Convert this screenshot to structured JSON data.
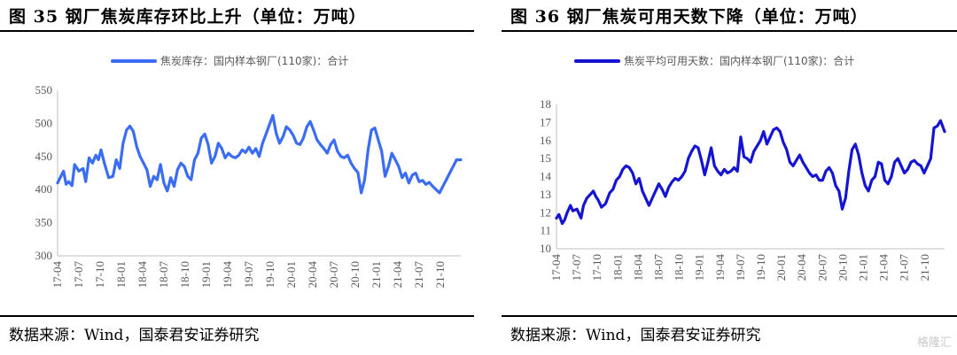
{
  "source_text": "数据来源：Wind，国泰君安证券研究",
  "watermark": "格隆汇",
  "chart_data": [
    {
      "type": "line",
      "title": "图 35  钢厂焦炭库存环比上升（单位：万吨）",
      "legend": "焦炭库存：国内样本钢厂(110家)：合计",
      "color": "#3A6CF4",
      "ylim": [
        300,
        550
      ],
      "yticks": [
        300,
        350,
        400,
        450,
        500,
        550
      ],
      "xticks": [
        "17-04",
        "17-07",
        "17-10",
        "18-01",
        "18-04",
        "18-07",
        "18-10",
        "19-01",
        "19-04",
        "19-07",
        "19-10",
        "20-01",
        "20-04",
        "20-07",
        "20-10",
        "21-01",
        "21-04",
        "21-07",
        "21-10"
      ],
      "x_start": 2017.25,
      "x_end": 2021.99,
      "series": [
        {
          "x": [
            2017.25,
            2017.28,
            2017.32,
            2017.35,
            2017.38,
            2017.42,
            2017.45,
            2017.5,
            2017.55,
            2017.58,
            2017.62,
            2017.66,
            2017.7,
            2017.73,
            2017.76,
            2017.8,
            2017.85,
            2017.9,
            2017.94,
            2017.98,
            2018.02,
            2018.06,
            2018.1,
            2018.14,
            2018.18,
            2018.22,
            2018.26,
            2018.3,
            2018.34,
            2018.38,
            2018.42,
            2018.46,
            2018.5,
            2018.54,
            2018.58,
            2018.62,
            2018.66,
            2018.7,
            2018.74,
            2018.78,
            2018.82,
            2018.86,
            2018.9,
            2018.94,
            2018.98,
            2019.02,
            2019.06,
            2019.1,
            2019.14,
            2019.18,
            2019.22,
            2019.26,
            2019.3,
            2019.34,
            2019.38,
            2019.42,
            2019.46,
            2019.5,
            2019.54,
            2019.58,
            2019.62,
            2019.66,
            2019.7,
            2019.74,
            2019.78,
            2019.82,
            2019.86,
            2019.9,
            2019.94,
            2019.98,
            2020.02,
            2020.06,
            2020.1,
            2020.14,
            2020.18,
            2020.22,
            2020.26,
            2020.3,
            2020.34,
            2020.38,
            2020.42,
            2020.46,
            2020.5,
            2020.54,
            2020.58,
            2020.62,
            2020.66,
            2020.7,
            2020.74,
            2020.78,
            2020.82,
            2020.86,
            2020.9,
            2020.94,
            2020.98,
            2021.02,
            2021.06,
            2021.1,
            2021.14,
            2021.18,
            2021.22,
            2021.26,
            2021.3,
            2021.34,
            2021.38,
            2021.42,
            2021.46,
            2021.5,
            2021.54,
            2021.58,
            2021.62,
            2021.66,
            2021.7,
            2021.74,
            2021.78,
            2021.82,
            2021.86,
            2021.9,
            2021.94,
            2021.99
          ],
          "y": [
            410,
            418,
            428,
            408,
            412,
            406,
            438,
            428,
            432,
            412,
            448,
            440,
            452,
            445,
            460,
            440,
            418,
            420,
            445,
            432,
            470,
            490,
            496,
            488,
            465,
            450,
            440,
            430,
            405,
            420,
            415,
            438,
            410,
            398,
            418,
            405,
            430,
            440,
            435,
            420,
            415,
            445,
            455,
            478,
            484,
            468,
            440,
            450,
            470,
            462,
            448,
            455,
            450,
            448,
            452,
            460,
            456,
            464,
            455,
            462,
            450,
            470,
            484,
            498,
            512,
            485,
            470,
            480,
            495,
            490,
            482,
            470,
            468,
            478,
            495,
            503,
            490,
            475,
            468,
            462,
            455,
            468,
            475,
            458,
            450,
            448,
            452,
            440,
            432,
            426,
            395,
            415,
            460,
            490,
            493,
            475,
            458,
            420,
            435,
            455,
            445,
            435,
            418,
            425,
            410,
            422,
            425,
            412,
            414,
            408,
            411,
            405,
            400,
            395,
            405,
            415,
            425,
            435,
            445,
            445
          ]
        }
      ]
    },
    {
      "type": "line",
      "title": "图 36  钢厂焦炭可用天数下降（单位：万吨）",
      "legend": "焦炭平均可用天数：国内样本钢厂(110家)：合计",
      "color": "#1414D2",
      "ylim": [
        10,
        18
      ],
      "yticks": [
        10,
        11,
        12,
        13,
        14,
        15,
        16,
        17,
        18
      ],
      "xticks": [
        "17-04",
        "17-07",
        "17-10",
        "18-01",
        "18-04",
        "18-07",
        "18-10",
        "19-01",
        "19-04",
        "19-07",
        "19-10",
        "20-01",
        "20-04",
        "20-07",
        "20-10",
        "21-01",
        "21-04",
        "21-07",
        "21-10"
      ],
      "x_start": 2017.25,
      "x_end": 2021.99,
      "series": [
        {
          "x": [
            2017.25,
            2017.28,
            2017.32,
            2017.35,
            2017.38,
            2017.42,
            2017.45,
            2017.5,
            2017.55,
            2017.58,
            2017.62,
            2017.66,
            2017.7,
            2017.73,
            2017.76,
            2017.8,
            2017.85,
            2017.9,
            2017.94,
            2017.98,
            2018.02,
            2018.06,
            2018.1,
            2018.14,
            2018.18,
            2018.22,
            2018.26,
            2018.3,
            2018.34,
            2018.38,
            2018.42,
            2018.46,
            2018.5,
            2018.54,
            2018.58,
            2018.62,
            2018.66,
            2018.7,
            2018.74,
            2018.78,
            2018.82,
            2018.86,
            2018.9,
            2018.94,
            2018.98,
            2019.02,
            2019.06,
            2019.1,
            2019.14,
            2019.18,
            2019.22,
            2019.26,
            2019.3,
            2019.34,
            2019.38,
            2019.42,
            2019.46,
            2019.5,
            2019.54,
            2019.58,
            2019.62,
            2019.66,
            2019.7,
            2019.74,
            2019.78,
            2019.82,
            2019.86,
            2019.9,
            2019.94,
            2019.98,
            2020.02,
            2020.06,
            2020.1,
            2020.14,
            2020.18,
            2020.22,
            2020.26,
            2020.3,
            2020.34,
            2020.38,
            2020.42,
            2020.46,
            2020.5,
            2020.54,
            2020.58,
            2020.62,
            2020.66,
            2020.7,
            2020.74,
            2020.78,
            2020.82,
            2020.86,
            2020.9,
            2020.94,
            2020.98,
            2021.02,
            2021.06,
            2021.1,
            2021.14,
            2021.18,
            2021.22,
            2021.26,
            2021.3,
            2021.34,
            2021.38,
            2021.42,
            2021.46,
            2021.5,
            2021.54,
            2021.58,
            2021.62,
            2021.66,
            2021.7,
            2021.74,
            2021.78,
            2021.82,
            2021.86,
            2021.9,
            2021.94,
            2021.99
          ],
          "y": [
            11.7,
            11.9,
            11.4,
            11.6,
            12.0,
            12.4,
            12.1,
            12.2,
            11.7,
            12.4,
            12.8,
            13.0,
            13.2,
            12.9,
            12.7,
            12.3,
            12.5,
            13.1,
            13.3,
            13.8,
            14.0,
            14.4,
            14.6,
            14.5,
            14.2,
            13.6,
            13.9,
            13.2,
            12.8,
            12.4,
            12.8,
            13.2,
            13.6,
            13.3,
            12.9,
            13.4,
            13.7,
            13.9,
            13.8,
            14.0,
            14.3,
            15.0,
            15.4,
            15.7,
            15.6,
            14.9,
            14.1,
            14.8,
            15.6,
            14.6,
            14.3,
            14.1,
            14.4,
            14.2,
            14.3,
            14.5,
            14.3,
            16.2,
            15.1,
            15.0,
            14.8,
            15.4,
            15.7,
            16.0,
            16.5,
            15.8,
            16.2,
            16.6,
            16.7,
            16.5,
            15.9,
            15.5,
            14.8,
            14.6,
            14.9,
            15.2,
            14.8,
            14.5,
            14.2,
            14.0,
            14.1,
            13.8,
            13.8,
            14.3,
            14.5,
            14.2,
            13.5,
            13.2,
            12.2,
            12.8,
            14.3,
            15.5,
            15.8,
            15.2,
            14.2,
            13.5,
            13.2,
            13.8,
            14.0,
            14.8,
            14.7,
            13.8,
            13.6,
            14.0,
            14.8,
            15.0,
            14.6,
            14.2,
            14.4,
            14.8,
            14.9,
            14.7,
            14.6,
            14.2,
            14.6,
            15.0,
            16.7,
            16.8,
            17.1,
            16.5
          ]
        }
      ]
    }
  ]
}
